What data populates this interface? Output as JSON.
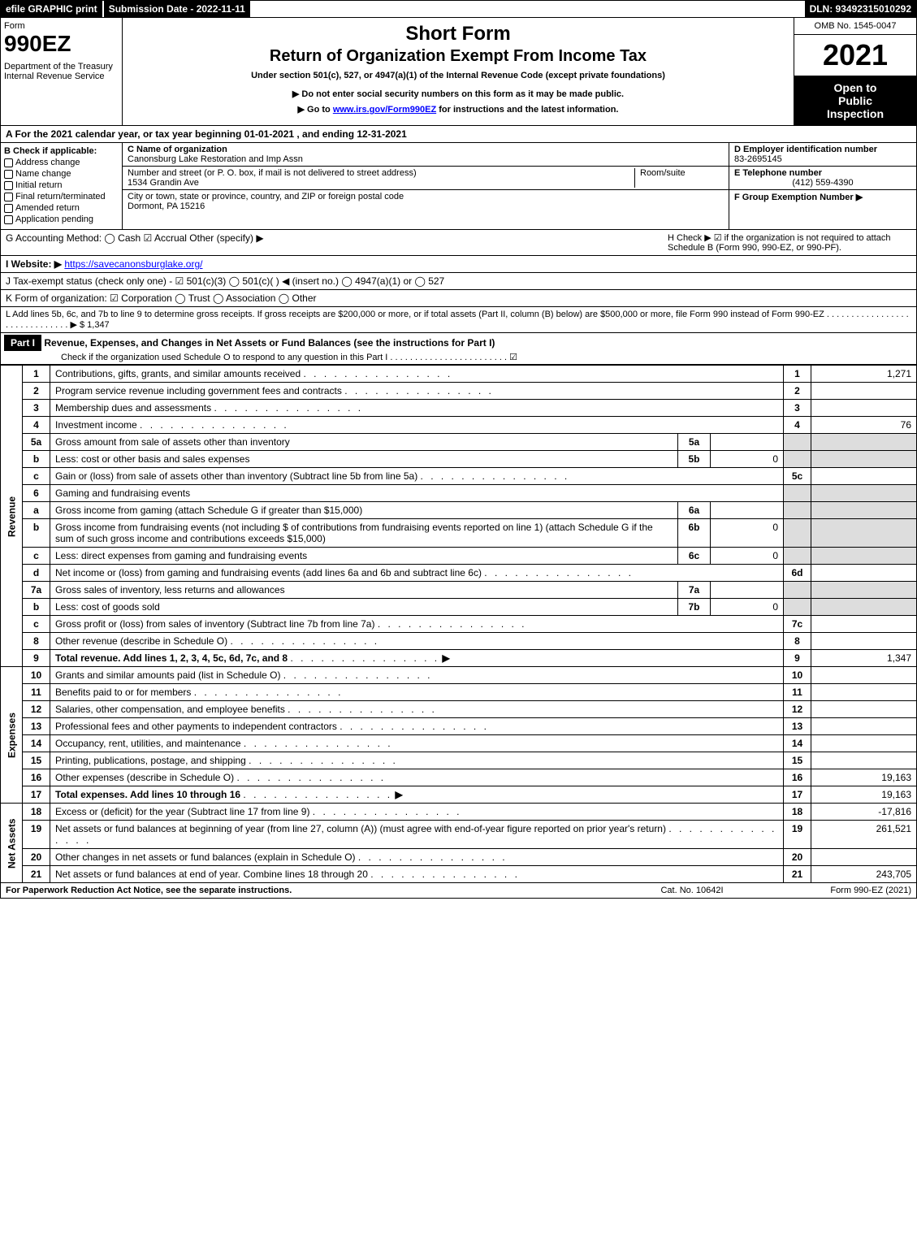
{
  "topbar": {
    "efile": "efile GRAPHIC print",
    "submission": "Submission Date - 2022-11-11",
    "dln": "DLN: 93492315010292"
  },
  "header": {
    "form_label": "Form",
    "form_number": "990EZ",
    "dept": "Department of the Treasury",
    "irs": "Internal Revenue Service",
    "title1": "Short Form",
    "title2": "Return of Organization Exempt From Income Tax",
    "subtitle": "Under section 501(c), 527, or 4947(a)(1) of the Internal Revenue Code (except private foundations)",
    "warn1": "▶ Do not enter social security numbers on this form as it may be made public.",
    "warn2": "▶ Go to www.irs.gov/Form990EZ for instructions and the latest information.",
    "omb": "OMB No. 1545-0047",
    "year": "2021",
    "inspection1": "Open to",
    "inspection2": "Public",
    "inspection3": "Inspection"
  },
  "line_a": "A  For the 2021 calendar year, or tax year beginning 01-01-2021 , and ending 12-31-2021",
  "box_b": {
    "title": "B  Check if applicable:",
    "opts": [
      "Address change",
      "Name change",
      "Initial return",
      "Final return/terminated",
      "Amended return",
      "Application pending"
    ]
  },
  "box_c": {
    "label_c": "C Name of organization",
    "org": "Canonsburg Lake Restoration and Imp Assn",
    "street_label": "Number and street (or P. O. box, if mail is not delivered to street address)",
    "room_label": "Room/suite",
    "street": "1534 Grandin Ave",
    "city_label": "City or town, state or province, country, and ZIP or foreign postal code",
    "city": "Dormont, PA  15216"
  },
  "box_d": {
    "ein_label": "D Employer identification number",
    "ein": "83-2695145",
    "tel_label": "E Telephone number",
    "tel": "(412) 559-4390",
    "group_label": "F Group Exemption Number  ▶"
  },
  "line_g": "G Accounting Method:   ◯ Cash   ☑ Accrual   Other (specify) ▶",
  "line_h": "H   Check ▶  ☑  if the organization is not required to attach Schedule B (Form 990, 990-EZ, or 990-PF).",
  "line_i_label": "I Website: ▶",
  "line_i_url": "https://savecanonsburglake.org/",
  "line_j": "J Tax-exempt status (check only one) -  ☑ 501(c)(3)  ◯ 501(c)(  ) ◀ (insert no.)  ◯ 4947(a)(1) or  ◯ 527",
  "line_k": "K Form of organization:   ☑ Corporation   ◯ Trust   ◯ Association   ◯ Other",
  "line_l": "L Add lines 5b, 6c, and 7b to line 9 to determine gross receipts. If gross receipts are $200,000 or more, or if total assets (Part II, column (B) below) are $500,000 or more, file Form 990 instead of Form 990-EZ . . . . . . . . . . . . . . . . . . . . . . . . . . . . . . ▶ $ 1,347",
  "part1": {
    "label": "Part I",
    "title": "Revenue, Expenses, and Changes in Net Assets or Fund Balances (see the instructions for Part I)",
    "check": "Check if the organization used Schedule O to respond to any question in this Part I . . . . . . . . . . . . . . . . . . . . . . . . ☑"
  },
  "sections": {
    "revenue": "Revenue",
    "expenses": "Expenses",
    "netassets": "Net Assets"
  },
  "rows": [
    {
      "n": "1",
      "d": "Contributions, gifts, grants, and similar amounts received",
      "r": "1",
      "a": "1,271"
    },
    {
      "n": "2",
      "d": "Program service revenue including government fees and contracts",
      "r": "2",
      "a": ""
    },
    {
      "n": "3",
      "d": "Membership dues and assessments",
      "r": "3",
      "a": ""
    },
    {
      "n": "4",
      "d": "Investment income",
      "r": "4",
      "a": "76"
    },
    {
      "n": "5a",
      "d": "Gross amount from sale of assets other than inventory",
      "sub": "5a",
      "sv": ""
    },
    {
      "n": "b",
      "d": "Less: cost or other basis and sales expenses",
      "sub": "5b",
      "sv": "0"
    },
    {
      "n": "c",
      "d": "Gain or (loss) from sale of assets other than inventory (Subtract line 5b from line 5a)",
      "r": "5c",
      "a": ""
    },
    {
      "n": "6",
      "d": "Gaming and fundraising events"
    },
    {
      "n": "a",
      "d": "Gross income from gaming (attach Schedule G if greater than $15,000)",
      "sub": "6a",
      "sv": ""
    },
    {
      "n": "b",
      "d": "Gross income from fundraising events (not including $                     of contributions from fundraising events reported on line 1) (attach Schedule G if the sum of such gross income and contributions exceeds $15,000)",
      "sub": "6b",
      "sv": "0",
      "wrap": true
    },
    {
      "n": "c",
      "d": "Less: direct expenses from gaming and fundraising events",
      "sub": "6c",
      "sv": "0"
    },
    {
      "n": "d",
      "d": "Net income or (loss) from gaming and fundraising events (add lines 6a and 6b and subtract line 6c)",
      "r": "6d",
      "a": ""
    },
    {
      "n": "7a",
      "d": "Gross sales of inventory, less returns and allowances",
      "sub": "7a",
      "sv": ""
    },
    {
      "n": "b",
      "d": "Less: cost of goods sold",
      "sub": "7b",
      "sv": "0"
    },
    {
      "n": "c",
      "d": "Gross profit or (loss) from sales of inventory (Subtract line 7b from line 7a)",
      "r": "7c",
      "a": ""
    },
    {
      "n": "8",
      "d": "Other revenue (describe in Schedule O)",
      "r": "8",
      "a": ""
    },
    {
      "n": "9",
      "d": "Total revenue. Add lines 1, 2, 3, 4, 5c, 6d, 7c, and 8",
      "r": "9",
      "a": "1,347",
      "bold": true,
      "arrow": true
    }
  ],
  "exp_rows": [
    {
      "n": "10",
      "d": "Grants and similar amounts paid (list in Schedule O)",
      "r": "10",
      "a": ""
    },
    {
      "n": "11",
      "d": "Benefits paid to or for members",
      "r": "11",
      "a": ""
    },
    {
      "n": "12",
      "d": "Salaries, other compensation, and employee benefits",
      "r": "12",
      "a": ""
    },
    {
      "n": "13",
      "d": "Professional fees and other payments to independent contractors",
      "r": "13",
      "a": ""
    },
    {
      "n": "14",
      "d": "Occupancy, rent, utilities, and maintenance",
      "r": "14",
      "a": ""
    },
    {
      "n": "15",
      "d": "Printing, publications, postage, and shipping",
      "r": "15",
      "a": ""
    },
    {
      "n": "16",
      "d": "Other expenses (describe in Schedule O)",
      "r": "16",
      "a": "19,163"
    },
    {
      "n": "17",
      "d": "Total expenses. Add lines 10 through 16",
      "r": "17",
      "a": "19,163",
      "bold": true,
      "arrow": true
    }
  ],
  "na_rows": [
    {
      "n": "18",
      "d": "Excess or (deficit) for the year (Subtract line 17 from line 9)",
      "r": "18",
      "a": "-17,816"
    },
    {
      "n": "19",
      "d": "Net assets or fund balances at beginning of year (from line 27, column (A)) (must agree with end-of-year figure reported on prior year's return)",
      "r": "19",
      "a": "261,521",
      "wrap": true
    },
    {
      "n": "20",
      "d": "Other changes in net assets or fund balances (explain in Schedule O)",
      "r": "20",
      "a": ""
    },
    {
      "n": "21",
      "d": "Net assets or fund balances at end of year. Combine lines 18 through 20",
      "r": "21",
      "a": "243,705"
    }
  ],
  "footer": {
    "left": "For Paperwork Reduction Act Notice, see the separate instructions.",
    "mid": "Cat. No. 10642I",
    "right": "Form 990-EZ (2021)"
  }
}
